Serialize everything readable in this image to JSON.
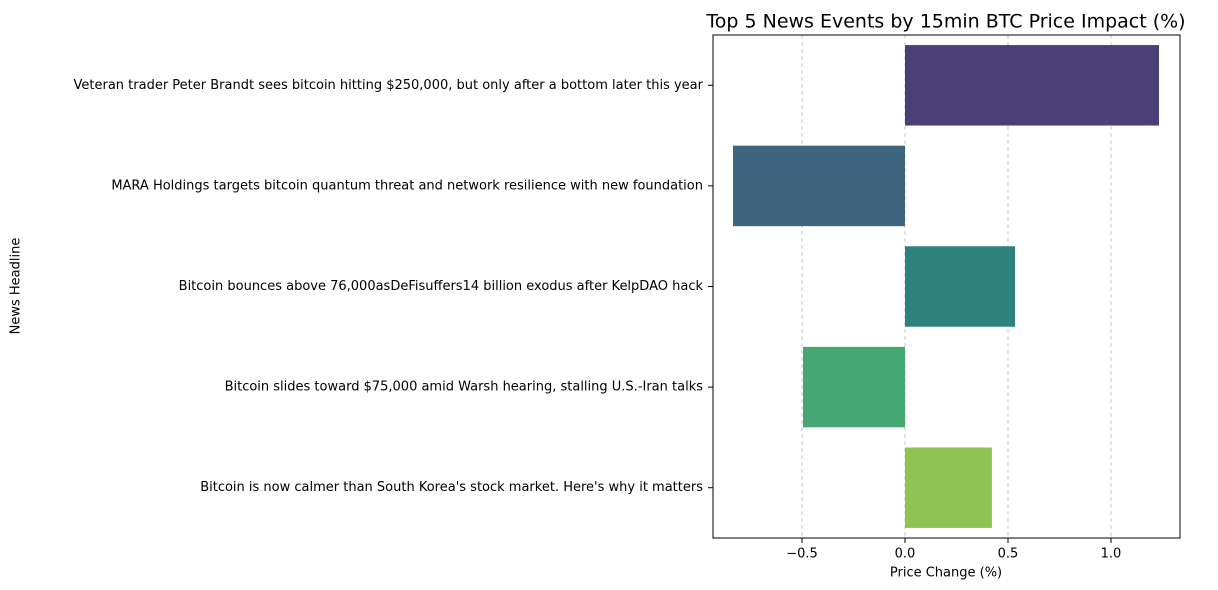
{
  "chart_data": {
    "type": "barh",
    "title": "Top 5 News Events by 15min BTC Price Impact (%)",
    "x_label": "Price Change (%)",
    "y_label": "News Headline",
    "categories": [
      "Veteran trader Peter Brandt sees bitcoin hitting $250,000, but only after a bottom later this year",
      "MARA Holdings targets bitcoin quantum threat and network resilience with new foundation",
      "Bitcoin bounces above 76,000asDeFisuffers14 billion exodus after KelpDAO hack",
      "Bitcoin slides toward $75,000 amid Warsh hearing, stalling U.S.-Iran talks",
      "Bitcoin is now calmer than South Korea's stock market. Here's why it matters"
    ],
    "values": [
      1.233,
      -0.835,
      0.534,
      -0.495,
      0.422
    ],
    "colors": [
      "#4b3f78",
      "#3e6480",
      "#2e827e",
      "#45a872",
      "#8dc452"
    ],
    "xlim": [
      -0.932,
      1.335
    ],
    "xticks": [
      {
        "value": -0.5,
        "label": "−0.5"
      },
      {
        "value": 0,
        "label": "0.0"
      },
      0.5,
      {
        "value": 1,
        "label": "1.0"
      }
    ],
    "grid": true
  }
}
